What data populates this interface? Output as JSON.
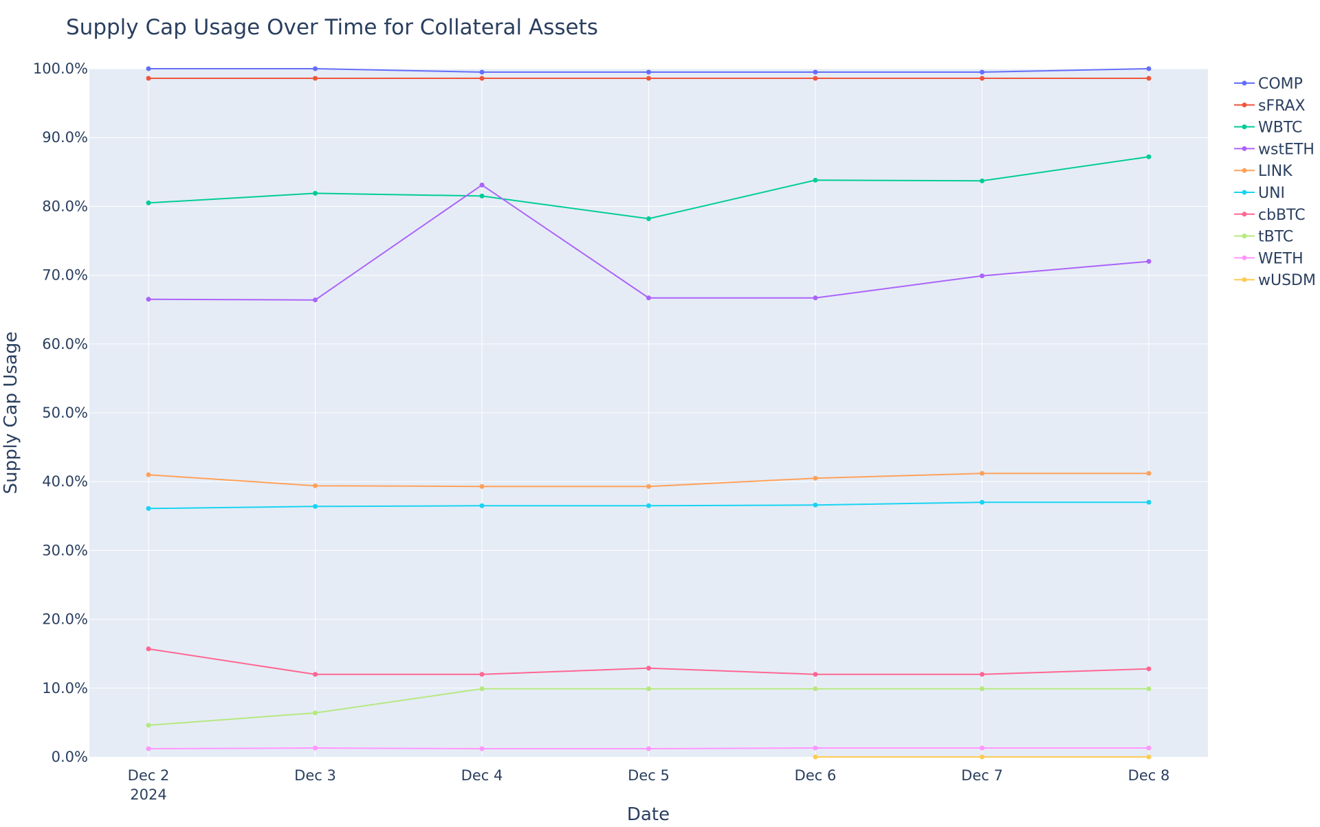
{
  "chart_data": {
    "type": "line",
    "title": "Supply Cap Usage Over Time for Collateral Assets",
    "xlabel": "Date",
    "ylabel": "Supply Cap Usage",
    "x": [
      "Dec 2",
      "Dec 3",
      "Dec 4",
      "Dec 5",
      "Dec 6",
      "Dec 7",
      "Dec 8"
    ],
    "x_tick_labels": [
      "Dec 2",
      "Dec 3",
      "Dec 4",
      "Dec 5",
      "Dec 6",
      "Dec 7",
      "Dec 8"
    ],
    "x_year_label": "2024",
    "ylim": [
      0,
      100
    ],
    "y_ticks": [
      0,
      10,
      20,
      30,
      40,
      50,
      60,
      70,
      80,
      90,
      100
    ],
    "y_tick_labels": [
      "0.0%",
      "10.0%",
      "20.0%",
      "30.0%",
      "40.0%",
      "50.0%",
      "60.0%",
      "70.0%",
      "80.0%",
      "90.0%",
      "100.0%"
    ],
    "grid": true,
    "legend_position": "right",
    "plot_background": "#e5ecf6",
    "series": [
      {
        "name": "COMP",
        "color": "#636efa",
        "values": [
          100.0,
          100.0,
          99.5,
          99.5,
          99.5,
          99.5,
          100.0
        ]
      },
      {
        "name": "sFRAX",
        "color": "#ef553b",
        "values": [
          98.6,
          98.6,
          98.6,
          98.6,
          98.6,
          98.6,
          98.6
        ]
      },
      {
        "name": "WBTC",
        "color": "#00cc96",
        "values": [
          80.5,
          81.9,
          81.5,
          78.2,
          83.8,
          83.7,
          87.2
        ]
      },
      {
        "name": "wstETH",
        "color": "#ab63fa",
        "values": [
          66.5,
          66.4,
          83.1,
          66.7,
          66.7,
          69.9,
          72.0
        ]
      },
      {
        "name": "LINK",
        "color": "#ffa15a",
        "values": [
          41.0,
          39.4,
          39.3,
          39.3,
          40.5,
          41.2,
          41.2
        ]
      },
      {
        "name": "UNI",
        "color": "#19d3f3",
        "values": [
          36.1,
          36.4,
          36.5,
          36.5,
          36.6,
          37.0,
          37.0
        ]
      },
      {
        "name": "cbBTC",
        "color": "#ff6692",
        "values": [
          15.7,
          12.0,
          12.0,
          12.9,
          12.0,
          12.0,
          12.8
        ]
      },
      {
        "name": "tBTC",
        "color": "#b6e880",
        "values": [
          4.6,
          6.4,
          9.9,
          9.9,
          9.9,
          9.9,
          9.9
        ]
      },
      {
        "name": "WETH",
        "color": "#ff97ff",
        "values": [
          1.2,
          1.3,
          1.2,
          1.2,
          1.3,
          1.3,
          1.3
        ]
      },
      {
        "name": "wUSDM",
        "color": "#fecb52",
        "values": [
          null,
          null,
          null,
          null,
          0.0,
          0.0,
          0.0
        ]
      }
    ]
  }
}
